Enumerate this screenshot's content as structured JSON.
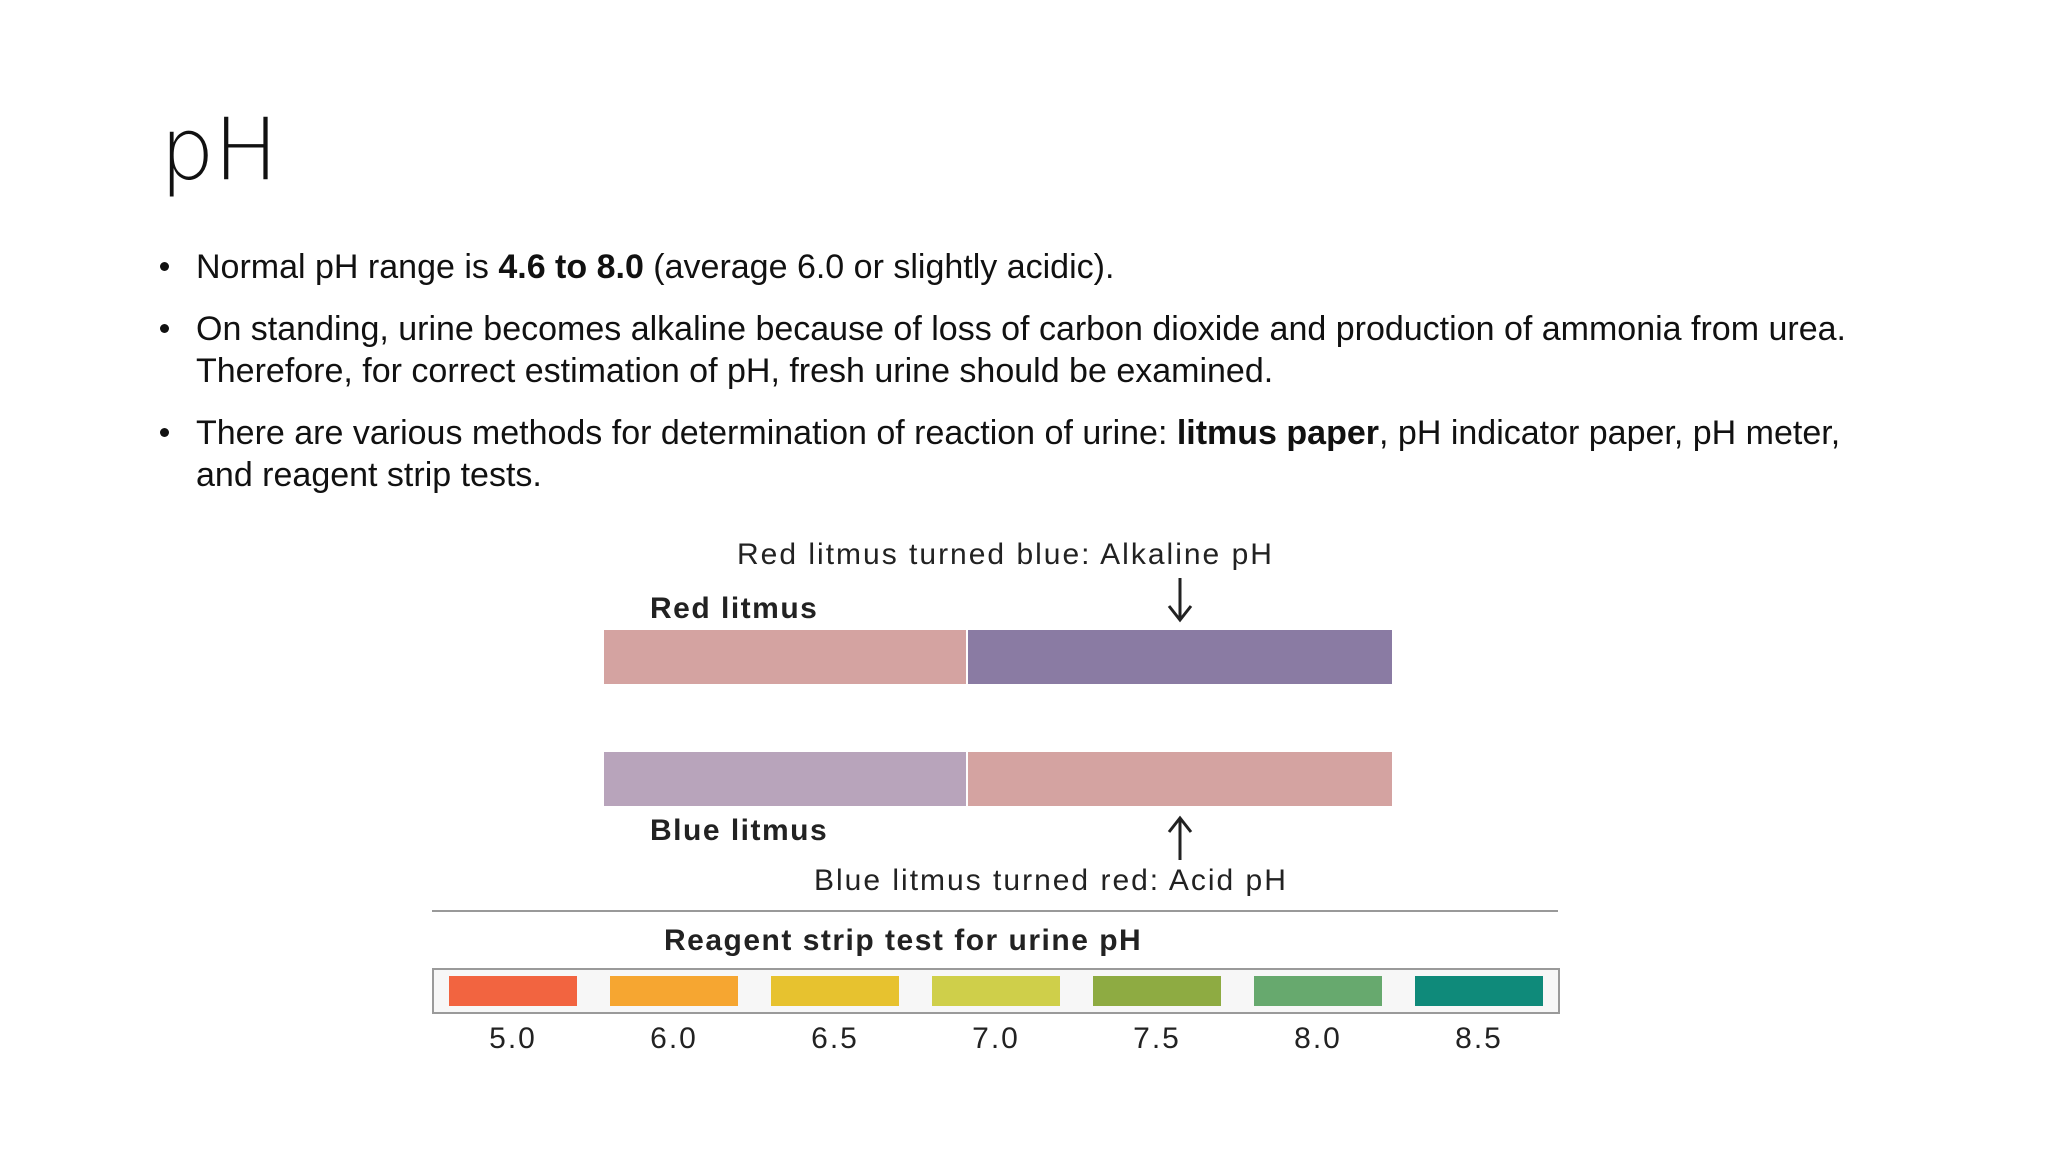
{
  "slide": {
    "title": "pH",
    "bullets": [
      {
        "before": "Normal pH range is ",
        "bold": "4.6 to 8.0",
        "after": " (average 6.0 or slightly acidic)."
      },
      {
        "text": "On standing, urine becomes alkaline because of loss of carbon dioxide and production of ammonia from urea. Therefore, for correct estimation of pH, fresh urine should be examined."
      },
      {
        "before": "There are various methods for determination of reaction of urine: ",
        "bold": "litmus paper",
        "after": ", pH indicator paper, pH meter, and reagent strip tests."
      }
    ]
  },
  "figure": {
    "red_litmus": {
      "caption": "Red litmus turned blue: Alkaline pH",
      "label": "Red litmus",
      "left_color": "#d4a3a1",
      "right_color": "#8a7ba3"
    },
    "blue_litmus": {
      "caption": "Blue litmus turned red: Acid pH",
      "label": "Blue litmus",
      "left_color": "#b8a4bb",
      "right_color": "#d4a3a1"
    },
    "reagent": {
      "title": "Reagent strip test for urine pH",
      "swatches": [
        {
          "ph": "5.0",
          "color": "#f26440"
        },
        {
          "ph": "6.0",
          "color": "#f6a631"
        },
        {
          "ph": "6.5",
          "color": "#e7c22f"
        },
        {
          "ph": "7.0",
          "color": "#cfcf4a"
        },
        {
          "ph": "7.5",
          "color": "#8eab42"
        },
        {
          "ph": "8.0",
          "color": "#67a96e"
        },
        {
          "ph": "8.5",
          "color": "#0f8a7a"
        }
      ]
    },
    "icons": {
      "down_arrow": "arrow-down-icon",
      "up_arrow": "arrow-up-icon"
    }
  }
}
